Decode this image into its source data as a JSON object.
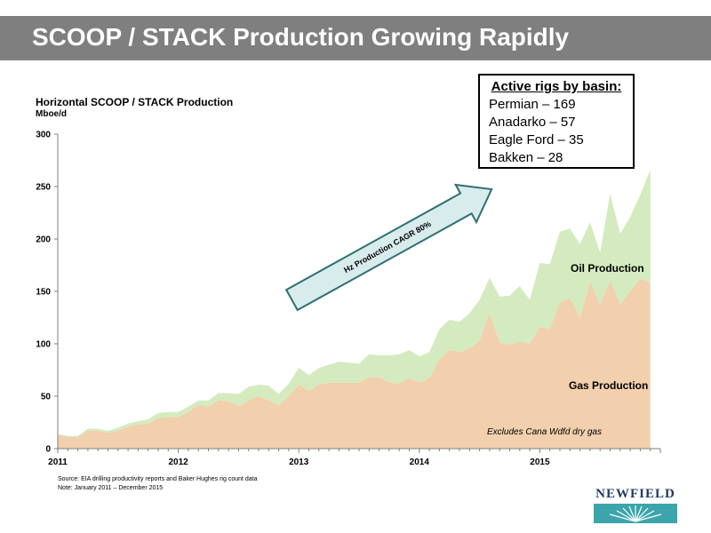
{
  "slide": {
    "title": "SCOOP / STACK Production Growing Rapidly"
  },
  "rigs": {
    "title": "Active rigs by basin:",
    "items": [
      "Permian – 169",
      "Anadarko – 57",
      "Eagle Ford – 35",
      "Bakken – 28"
    ]
  },
  "footnotes": {
    "source": "Source: EIA drilling productivity reports and Baker Hughes rig count data",
    "note": "Note: January 2011 – December 2015"
  },
  "logo": {
    "text": "NEWFIELD"
  },
  "colors": {
    "title_bar": "#7f7f7f",
    "gas": "#f2cfad",
    "oil": "#d4ebbf",
    "arrow_fill": "#d7eceb",
    "arrow_stroke": "#2f6f75",
    "logo_blue": "#1f3a5f",
    "logo_teal": "#3ba5ab"
  },
  "chart_data": {
    "type": "area",
    "title": "Horizontal SCOOP / STACK Production",
    "ylabel": "Mboe/d",
    "ylim": [
      0,
      300
    ],
    "yticks": [
      0,
      50,
      100,
      150,
      200,
      250,
      300
    ],
    "xlim": [
      2011,
      2016
    ],
    "xticks": [
      2011,
      2012,
      2013,
      2014,
      2015
    ],
    "stacked": true,
    "series": [
      {
        "name": "Gas Production",
        "values": [
          13,
          11,
          11,
          17,
          17,
          15,
          17,
          21,
          23,
          24,
          29,
          30,
          30,
          35,
          42,
          40,
          46,
          45,
          40,
          46,
          50,
          46,
          41,
          50,
          61,
          55,
          61,
          63,
          63,
          63,
          63,
          68,
          68,
          63,
          62,
          67,
          63,
          67,
          85,
          94,
          92,
          95,
          103,
          129,
          101,
          99,
          102,
          100,
          116,
          114,
          139,
          143,
          125,
          159,
          137,
          160,
          138,
          150,
          162,
          158
        ]
      },
      {
        "name": "Oil Production",
        "values": [
          1,
          1,
          1,
          2,
          2,
          2,
          3,
          3,
          3,
          4,
          5,
          5,
          5,
          5,
          4,
          6,
          7,
          8,
          12,
          13,
          11,
          14,
          11,
          12,
          16,
          15,
          16,
          17,
          20,
          19,
          18,
          22,
          21,
          26,
          28,
          27,
          25,
          25,
          29,
          29,
          29,
          34,
          39,
          34,
          44,
          47,
          53,
          42,
          61,
          62,
          68,
          67,
          70,
          57,
          50,
          83,
          67,
          71,
          80,
          108
        ]
      }
    ],
    "annotations": {
      "oil_label": "Oil Production",
      "gas_label": "Gas Production",
      "arrow_label": "Hz Production CAGR 80%",
      "excludes_note": "Excludes Cana Wdfd dry gas"
    }
  }
}
